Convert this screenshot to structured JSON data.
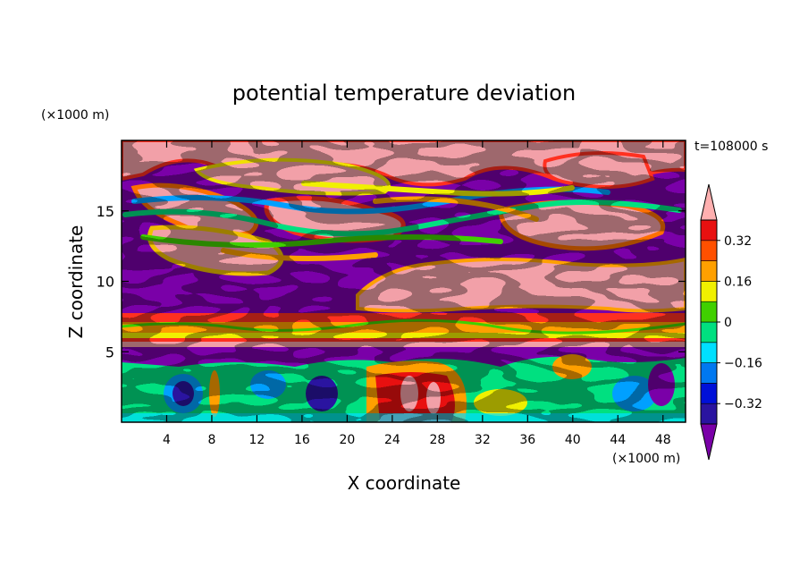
{
  "chart_data": {
    "type": "heatmap",
    "title": "potential temperature deviation",
    "time_label": "t=108000 s",
    "xlabel": "X coordinate",
    "ylabel": "Z coordinate",
    "x_unit": "(×1000 m)",
    "y_unit": "(×1000 m)",
    "xlim": [
      0,
      50
    ],
    "ylim": [
      0,
      20
    ],
    "x_ticks": [
      4,
      8,
      12,
      16,
      20,
      24,
      28,
      32,
      36,
      40,
      44,
      48
    ],
    "y_ticks": [
      5,
      10,
      15
    ],
    "colorbar": {
      "levels": [
        -0.4,
        -0.32,
        -0.24,
        -0.16,
        -0.08,
        0,
        0.08,
        0.16,
        0.24,
        0.32,
        0.4
      ],
      "colors": [
        "#7a00a8",
        "#2a14a0",
        "#0010d8",
        "#0078f0",
        "#00e0ff",
        "#00e080",
        "#40d000",
        "#f0f000",
        "#ffa000",
        "#ff5000",
        "#e81010",
        "#ffb0b0"
      ],
      "tick_labels": [
        "0.32",
        "0.16",
        "0",
        "−0.16",
        "−0.32"
      ],
      "tick_values": [
        0.32,
        0.16,
        0,
        -0.16,
        -0.32
      ]
    }
  }
}
